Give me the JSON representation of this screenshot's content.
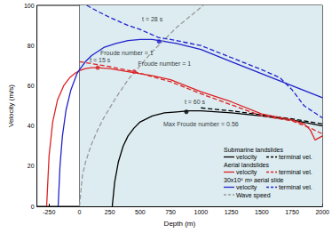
{
  "chart_data": {
    "type": "line",
    "x_label": "Depth (m)",
    "y_label": "Velocity (m/s)",
    "xlim": [
      -350,
      2000
    ],
    "xticks": [
      -250,
      0,
      250,
      500,
      750,
      1000,
      1250,
      1500,
      1750,
      2000
    ],
    "ylim": [
      0,
      100
    ],
    "yticks": [
      0,
      20,
      40,
      60,
      80,
      100
    ],
    "grid": false,
    "legend": "lower right",
    "shaded_region": {
      "x": [
        0,
        2000
      ],
      "color": "#dcecf1"
    },
    "series": [
      {
        "group": "Submarine landslides",
        "name": "velocity",
        "color": "#000000",
        "line_style": "solid",
        "x": [
          270,
          290,
          320,
          360,
          400,
          450,
          500,
          600,
          700,
          800,
          900,
          1000,
          1250,
          1500,
          1750,
          2000
        ],
        "values": [
          0,
          12,
          22,
          30,
          35,
          39,
          42,
          45,
          46.5,
          47,
          47.5,
          47.5,
          46.5,
          45,
          43,
          40
        ]
      },
      {
        "group": "Submarine landslides",
        "name": "terminal vel.",
        "color": "#000000",
        "line_style": "dashed",
        "x": [
          1000,
          1250,
          1500,
          1750,
          2000
        ],
        "values": [
          49,
          47.5,
          45.5,
          43.5,
          41
        ]
      },
      {
        "group": "Aerial landslides",
        "name": "velocity",
        "color": "#dd2222",
        "line_style": "solid",
        "x": [
          -270,
          -250,
          -220,
          -180,
          -130,
          -80,
          -30,
          0,
          50,
          100,
          150,
          250,
          400,
          600,
          750,
          1000,
          1250,
          1500,
          1750,
          1850,
          1900,
          1940,
          1970,
          2000
        ],
        "values": [
          0,
          25,
          42,
          53,
          60,
          64,
          66.5,
          67.5,
          68.5,
          69,
          69,
          68.5,
          67,
          65,
          63,
          57,
          52,
          46,
          43,
          41,
          38,
          33,
          34,
          35
        ]
      },
      {
        "group": "Aerial landslides",
        "name": "terminal vel.",
        "color": "#dd2222",
        "line_style": "dashed",
        "x": [
          0,
          100,
          250,
          450,
          600,
          750,
          1000,
          1250,
          1500,
          1750,
          1900,
          2000
        ],
        "values": [
          72,
          71,
          69.5,
          67,
          64.5,
          62,
          56,
          50.5,
          45,
          42.5,
          39,
          36
        ]
      },
      {
        "group": "30x10⁶ m³ aerial slide",
        "name": "velocity",
        "color": "#2222cc",
        "line_style": "solid",
        "x": [
          -175,
          -160,
          -140,
          -110,
          -70,
          -20,
          0,
          50,
          100,
          200,
          300,
          400,
          500,
          600,
          700,
          800,
          1000,
          1250,
          1500,
          1750,
          2000
        ],
        "values": [
          0,
          20,
          35,
          48,
          58,
          66,
          68,
          72,
          75,
          79,
          81,
          82.5,
          83,
          83,
          82,
          81,
          78,
          72,
          66,
          60,
          54
        ]
      },
      {
        "group": "30x10⁶ m³ aerial slide",
        "name": "terminal vel.",
        "color": "#2222cc",
        "line_style": "dashed",
        "x": [
          60,
          150,
          250,
          400,
          500,
          650,
          750,
          1000,
          1250,
          1500,
          1650,
          1750,
          1850,
          1950,
          2000
        ],
        "values": [
          100,
          97,
          94,
          90,
          88,
          84,
          83,
          80,
          74,
          68,
          64,
          58,
          50,
          46,
          44
        ]
      },
      {
        "name": "Wave speed",
        "color": "#999999",
        "line_style": "dashed",
        "x": [
          0,
          25,
          50,
          100,
          150,
          200,
          300,
          400,
          500,
          600,
          700,
          800,
          900,
          1000,
          1020
        ],
        "values": [
          0,
          15.5,
          22,
          31,
          38,
          44,
          54,
          63,
          70,
          77,
          83,
          89,
          94,
          99,
          100
        ]
      }
    ],
    "marked_points": [
      {
        "x": 655,
        "y": 82,
        "color": "#2222cc"
      },
      {
        "x": 150,
        "y": 69,
        "color": "#dd2222"
      },
      {
        "x": 450,
        "y": 67,
        "color": "#dd2222"
      },
      {
        "x": 880,
        "y": 47,
        "color": "#000000"
      }
    ],
    "annotations": [
      {
        "text": "t = 28 s",
        "x": 600,
        "y": 93
      },
      {
        "text": "Froude number = 1",
        "x": 390,
        "y": 76.5
      },
      {
        "text": "t = 15 s",
        "x": 170,
        "y": 73
      },
      {
        "text": "Froude number = 1",
        "x": 700,
        "y": 71
      },
      {
        "text": "t = 60 s",
        "x": 950,
        "y": 52
      },
      {
        "text": "Max Froude number = 0.56",
        "x": 1000,
        "y": 41
      }
    ]
  }
}
